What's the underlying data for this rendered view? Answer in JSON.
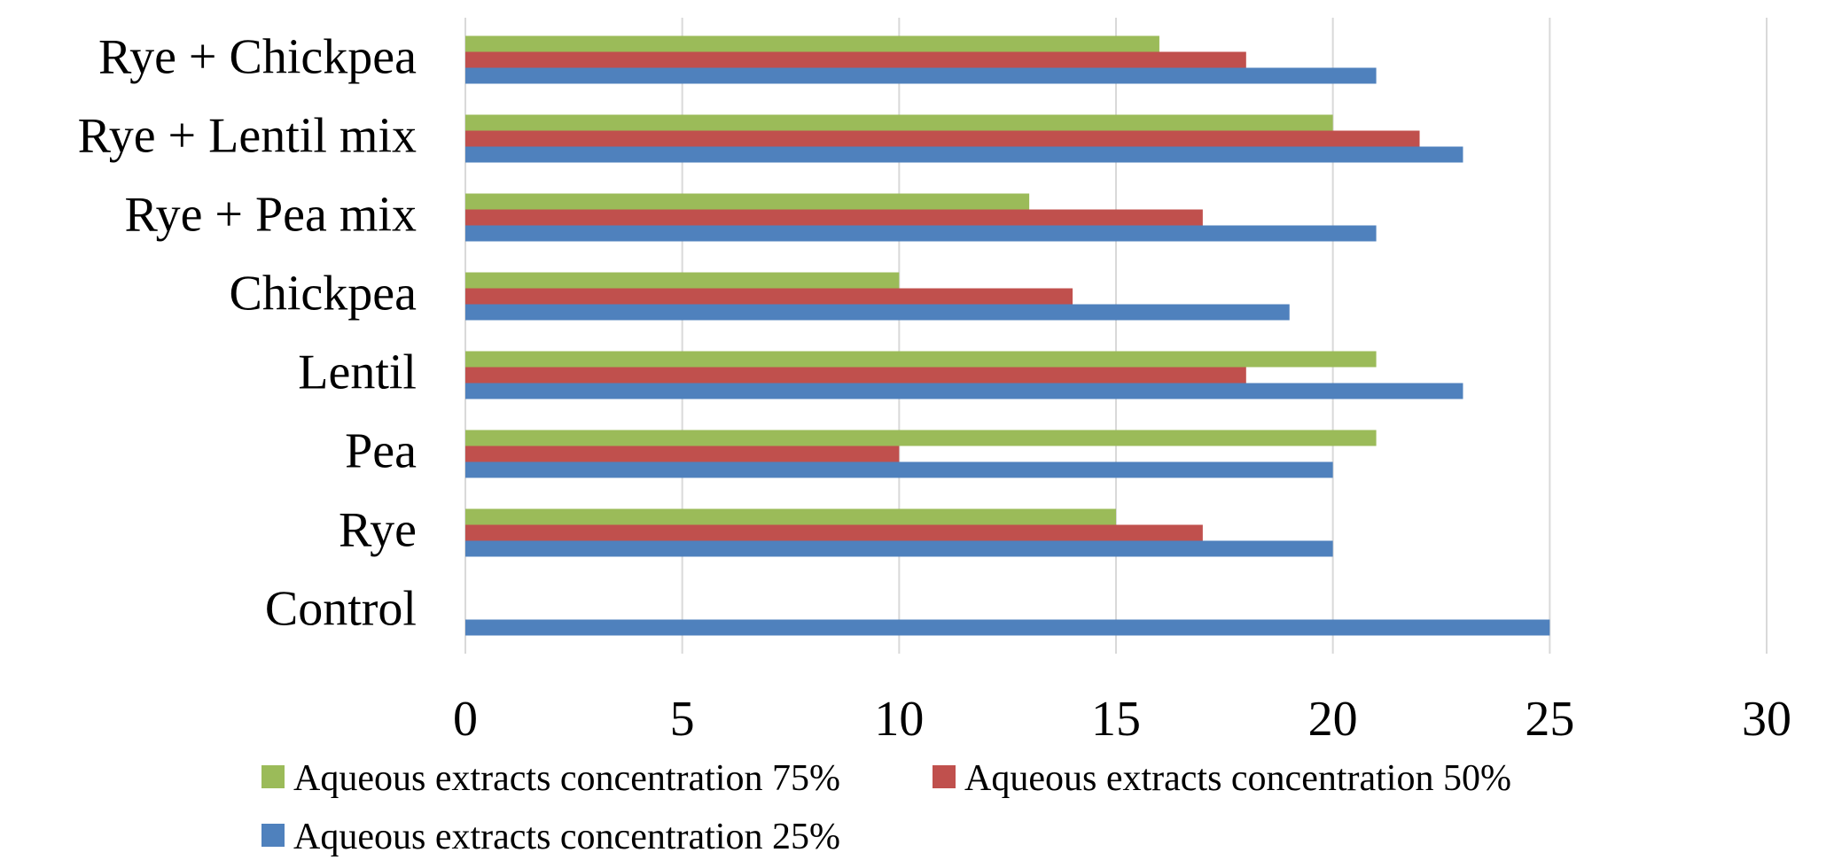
{
  "chart_data": {
    "type": "bar",
    "orientation": "horizontal",
    "categories": [
      "Control",
      "Rye",
      "Pea",
      "Lentil",
      "Chickpea",
      "Rye + Pea mix",
      "Rye + Lentil mix",
      "Rye + Chickpea"
    ],
    "series": [
      {
        "name": "Aqueous extracts concentration 75%",
        "color": "#9bbb59",
        "values": [
          0,
          15,
          21,
          21,
          10,
          13,
          20,
          16
        ]
      },
      {
        "name": "Aqueous extracts concentration 50%",
        "color": "#c0504d",
        "values": [
          0,
          17,
          10,
          18,
          14,
          17,
          22,
          18
        ]
      },
      {
        "name": "Aqueous extracts concentration 25%",
        "color": "#4f81bd",
        "values": [
          25,
          20,
          20,
          23,
          19,
          21,
          23,
          21
        ]
      }
    ],
    "xlim": [
      0,
      30
    ],
    "xticks": [
      "0",
      "5",
      "10",
      "15",
      "20",
      "25",
      "30"
    ],
    "grid": true,
    "legend_position": "bottom"
  }
}
